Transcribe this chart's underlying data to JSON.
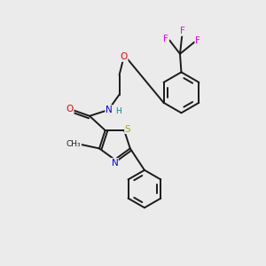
{
  "bg_color": "#ebebeb",
  "bond_color": "#1a1a1a",
  "colors": {
    "N": "#0000ee",
    "O": "#ee0000",
    "S": "#aaaa00",
    "F": "#ee00ee",
    "C": "#1a1a1a",
    "H": "#008888"
  }
}
